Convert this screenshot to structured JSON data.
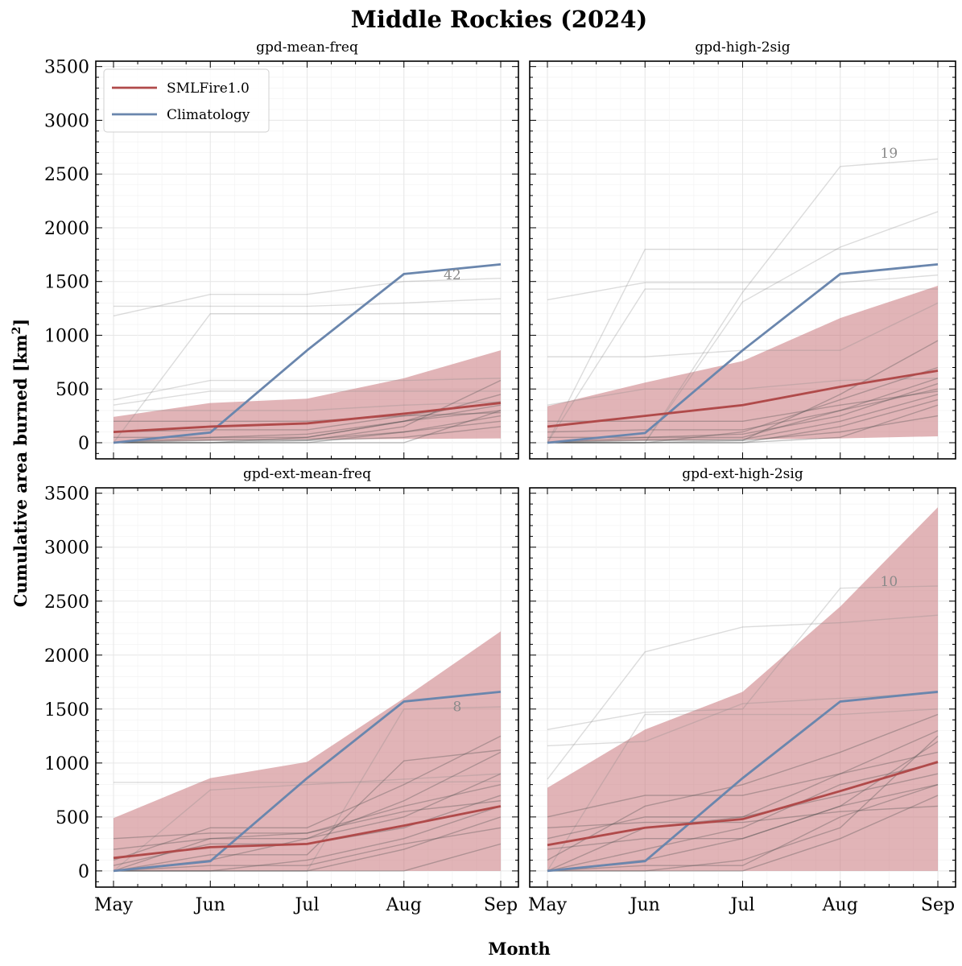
{
  "figure": {
    "title": "Middle Rockies (2024)",
    "xlabel": "Month",
    "ylabel": "Cumulative area burned [km",
    "ylabel_sup": "2",
    "ylabel_close": "]"
  },
  "colors": {
    "smlfire": "#b04a4a",
    "band": "#c8767c",
    "climatology": "#6a86ad",
    "gray_lines": "#8c8c8c",
    "dark_lines": "#505050"
  },
  "chart_data": {
    "type": "line",
    "categories": [
      "May",
      "Jun",
      "Jul",
      "Aug",
      "Sep"
    ],
    "ylim": [
      -150,
      3550
    ],
    "yticks": [
      0,
      500,
      1000,
      1500,
      2000,
      2500,
      3000,
      3500
    ],
    "grid": true,
    "legend": {
      "placement": "top-left",
      "entries": [
        "SMLFire1.0",
        "Climatology"
      ]
    },
    "panels": [
      {
        "title": "gpd-mean-freq",
        "count_label": "42",
        "count_label_pos": [
          3.5,
          1520
        ],
        "smlfire_median": [
          100,
          150,
          180,
          270,
          370
        ],
        "band_low": [
          10,
          20,
          30,
          35,
          40
        ],
        "band_high": [
          240,
          370,
          410,
          600,
          860
        ],
        "climatology": [
          0,
          95,
          860,
          1570,
          1660
        ],
        "gray_light": [
          [
            1180,
            1380,
            1380,
            1500,
            1530
          ],
          [
            1270,
            1270,
            1270,
            1300,
            1340
          ],
          [
            0,
            1200,
            1200,
            1200,
            1200
          ],
          [
            400,
            580,
            580,
            580,
            600
          ],
          [
            350,
            480,
            480,
            480,
            480
          ],
          [
            300,
            300,
            300,
            350,
            380
          ]
        ],
        "gray_dark": [
          [
            0,
            50,
            50,
            200,
            350
          ],
          [
            0,
            0,
            50,
            200,
            450
          ],
          [
            0,
            30,
            30,
            100,
            250
          ],
          [
            50,
            50,
            80,
            200,
            300
          ],
          [
            0,
            0,
            0,
            100,
            200
          ],
          [
            100,
            120,
            120,
            250,
            380
          ],
          [
            0,
            20,
            20,
            150,
            580
          ],
          [
            0,
            0,
            0,
            0,
            300
          ],
          [
            0,
            0,
            20,
            50,
            150
          ],
          [
            200,
            200,
            200,
            250,
            280
          ]
        ]
      },
      {
        "title": "gpd-high-2sig",
        "count_label": "19",
        "count_label_pos": [
          3.5,
          2650
        ],
        "smlfire_median": [
          150,
          250,
          350,
          520,
          670
        ],
        "band_low": [
          10,
          20,
          30,
          40,
          60
        ],
        "band_high": [
          340,
          560,
          760,
          1160,
          1460
        ],
        "climatology": [
          0,
          90,
          860,
          1570,
          1660
        ],
        "gray_light": [
          [
            0,
            0,
            1400,
            2570,
            2640
          ],
          [
            0,
            0,
            1310,
            1820,
            2150
          ],
          [
            0,
            1800,
            1800,
            1800,
            1800
          ],
          [
            1330,
            1490,
            1490,
            1490,
            1560
          ],
          [
            0,
            1430,
            1430,
            1430,
            1430
          ],
          [
            800,
            800,
            860,
            860,
            1300
          ],
          [
            350,
            500,
            500,
            580,
            600
          ]
        ],
        "gray_dark": [
          [
            0,
            50,
            50,
            300,
            600
          ],
          [
            0,
            0,
            100,
            400,
            700
          ],
          [
            0,
            30,
            30,
            200,
            450
          ],
          [
            50,
            50,
            80,
            250,
            550
          ],
          [
            0,
            0,
            0,
            150,
            400
          ],
          [
            100,
            120,
            120,
            300,
            500
          ],
          [
            0,
            20,
            20,
            450,
            950
          ],
          [
            0,
            0,
            0,
            50,
            350
          ],
          [
            0,
            0,
            20,
            100,
            250
          ],
          [
            200,
            200,
            200,
            350,
            480
          ]
        ]
      },
      {
        "title": "gpd-ext-mean-freq",
        "count_label": "8",
        "count_label_pos": [
          3.55,
          1480
        ],
        "smlfire_median": [
          120,
          220,
          250,
          420,
          600
        ],
        "band_low": [
          0,
          0,
          0,
          0,
          0
        ],
        "band_high": [
          490,
          860,
          1010,
          1600,
          2220
        ],
        "climatology": [
          0,
          90,
          860,
          1570,
          1660
        ],
        "gray_light": [
          [
            820,
            820,
            820,
            820,
            830
          ],
          [
            0,
            750,
            800,
            850,
            900
          ],
          [
            0,
            0,
            0,
            1500,
            1520
          ]
        ],
        "gray_dark": [
          [
            0,
            300,
            300,
            650,
            1100
          ],
          [
            100,
            400,
            400,
            800,
            1250
          ],
          [
            0,
            100,
            300,
            500,
            900
          ],
          [
            50,
            250,
            250,
            400,
            700
          ],
          [
            0,
            0,
            100,
            300,
            600
          ],
          [
            200,
            300,
            350,
            600,
            800
          ],
          [
            0,
            150,
            150,
            1020,
            1120
          ],
          [
            0,
            0,
            0,
            200,
            500
          ],
          [
            0,
            50,
            50,
            250,
            400
          ],
          [
            300,
            350,
            350,
            550,
            650
          ],
          [
            0,
            0,
            0,
            0,
            250
          ]
        ]
      },
      {
        "title": "gpd-ext-high-2sig",
        "count_label": "10",
        "count_label_pos": [
          3.5,
          2640
        ],
        "smlfire_median": [
          240,
          400,
          480,
          740,
          1010
        ],
        "band_low": [
          0,
          0,
          0,
          0,
          0
        ],
        "band_high": [
          770,
          1310,
          1660,
          2450,
          3370
        ],
        "climatology": [
          0,
          90,
          860,
          1570,
          1660
        ],
        "gray_light": [
          [
            850,
            2030,
            2260,
            2300,
            2370
          ],
          [
            1310,
            1470,
            1500,
            2620,
            2640
          ],
          [
            1160,
            1200,
            1550,
            1600,
            1650
          ],
          [
            0,
            1450,
            1450,
            1450,
            1500
          ]
        ],
        "gray_dark": [
          [
            0,
            400,
            500,
            900,
            1300
          ],
          [
            100,
            600,
            800,
            1100,
            1450
          ],
          [
            0,
            200,
            400,
            800,
            1000
          ],
          [
            300,
            500,
            500,
            700,
            900
          ],
          [
            0,
            100,
            300,
            600,
            1200
          ],
          [
            500,
            700,
            700,
            900,
            1100
          ],
          [
            0,
            50,
            50,
            500,
            800
          ],
          [
            200,
            300,
            300,
            600,
            800
          ],
          [
            0,
            0,
            0,
            300,
            700
          ],
          [
            400,
            450,
            450,
            550,
            600
          ],
          [
            0,
            0,
            100,
            400,
            1250
          ]
        ]
      }
    ]
  }
}
